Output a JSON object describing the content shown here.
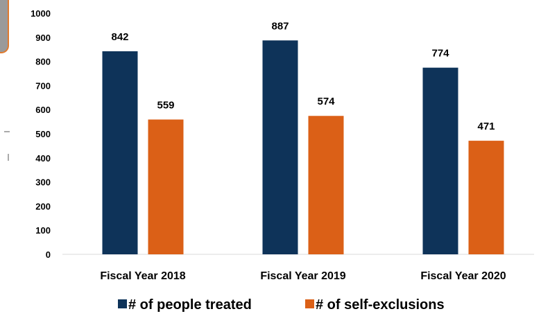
{
  "chart_data": {
    "type": "bar",
    "categories": [
      "Fiscal Year 2018",
      "Fiscal Year 2019",
      "Fiscal Year 2020"
    ],
    "series": [
      {
        "name": "# of people treated",
        "values": [
          842,
          887,
          774
        ],
        "color": "#0e3359"
      },
      {
        "name": "# of self-exclusions",
        "values": [
          559,
          574,
          471
        ],
        "color": "#db6017"
      }
    ],
    "ylim": [
      0,
      1000
    ],
    "yticks": [
      0,
      100,
      200,
      300,
      400,
      500,
      600,
      700,
      800,
      900,
      1000
    ],
    "grid": false,
    "legend_position": "bottom",
    "title": "",
    "xlabel": "",
    "ylabel": ""
  }
}
